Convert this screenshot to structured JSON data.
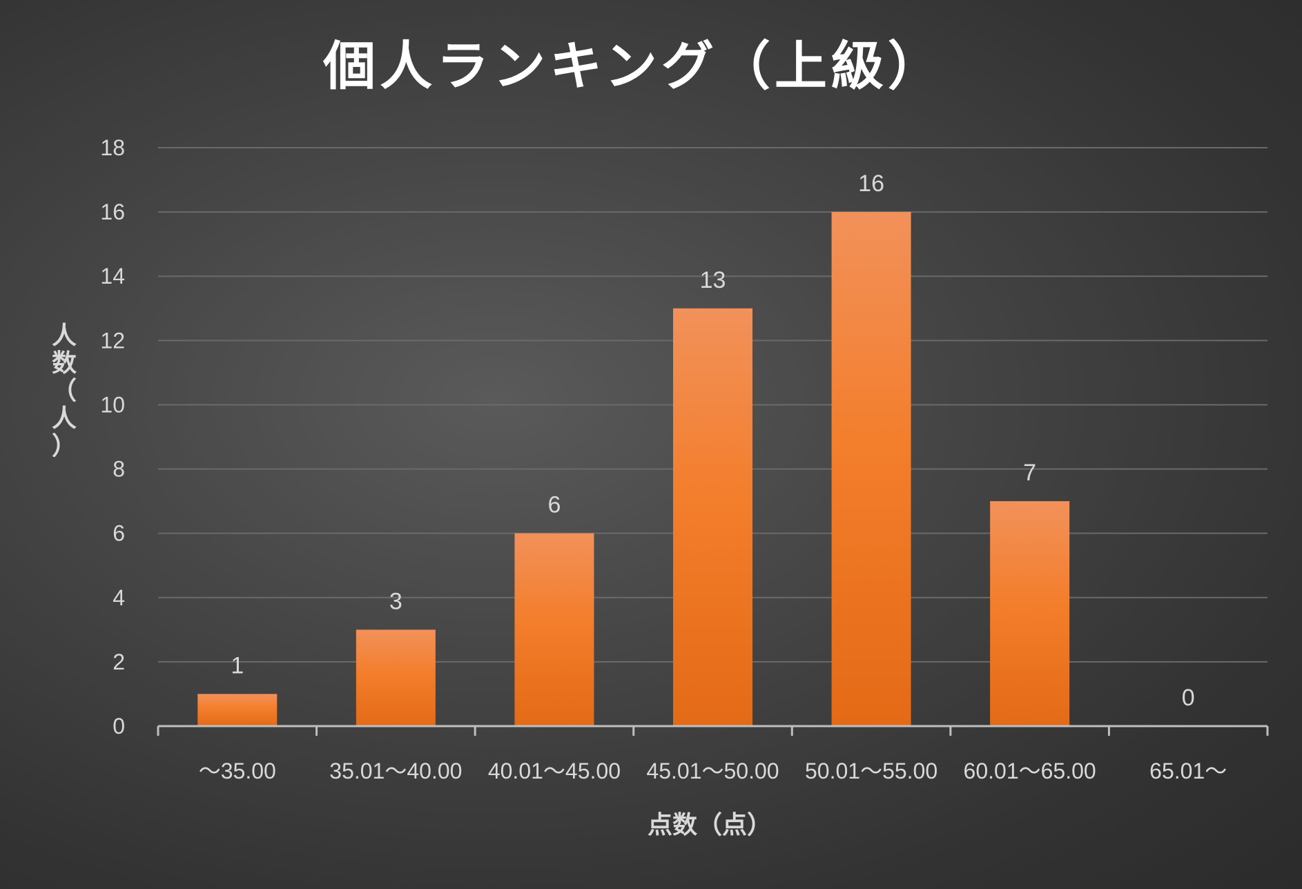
{
  "chart_data": {
    "type": "bar",
    "title": "個人ランキング（上級）",
    "xlabel": "点数（点）",
    "ylabel": "人数（人）",
    "categories": [
      "～35.00",
      "35.01～40.00",
      "40.01～45.00",
      "45.01～50.00",
      "50.01～55.00",
      "60.01～65.00",
      "65.01～"
    ],
    "values": [
      1,
      3,
      6,
      13,
      16,
      7,
      0
    ],
    "ylim": [
      0,
      18
    ],
    "yticks": [
      0,
      2,
      4,
      6,
      8,
      10,
      12,
      14,
      16,
      18
    ],
    "grid": true,
    "data_labels": true,
    "colors": {
      "bar_top": "#f2915a",
      "bar_mid": "#f37e2c",
      "bar_bottom": "#e46a16"
    }
  }
}
